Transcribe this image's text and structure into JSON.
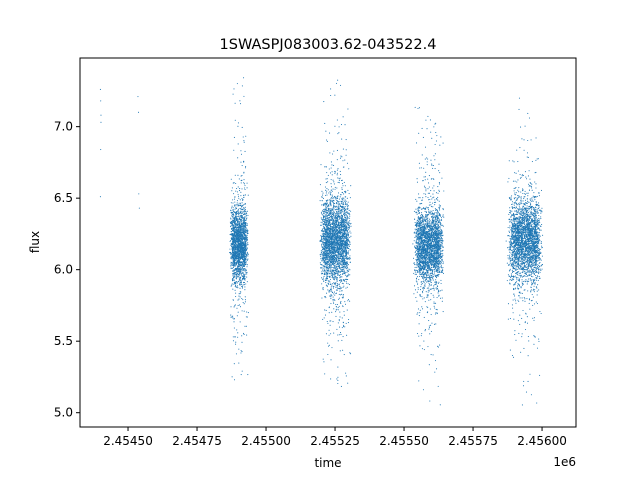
{
  "chart_data": {
    "type": "scatter",
    "title": "1SWASPJ083003.62-043522.4",
    "xlabel": "time",
    "ylabel": "flux",
    "x_offset_label": "1e6",
    "xlim": [
      2454326,
      2456123
    ],
    "ylim": [
      4.9,
      7.48
    ],
    "x_ticks": [
      {
        "value": 2454500,
        "label": "2.45450"
      },
      {
        "value": 2454750,
        "label": "2.45475"
      },
      {
        "value": 2455000,
        "label": "2.45500"
      },
      {
        "value": 2455250,
        "label": "2.45525"
      },
      {
        "value": 2455500,
        "label": "2.45550"
      },
      {
        "value": 2455750,
        "label": "2.45575"
      },
      {
        "value": 2456000,
        "label": "2.45600"
      }
    ],
    "y_ticks": [
      {
        "value": 5.0,
        "label": "5.0"
      },
      {
        "value": 5.5,
        "label": "5.5"
      },
      {
        "value": 6.0,
        "label": "6.0"
      },
      {
        "value": 6.5,
        "label": "6.5"
      },
      {
        "value": 7.0,
        "label": "7.0"
      }
    ],
    "grid": false,
    "marker_color": "#1f77b4",
    "series": [
      {
        "points": [
          [
            2454400,
            7.26
          ],
          [
            2454401,
            7.18
          ],
          [
            2454402,
            7.08
          ],
          [
            2454402,
            7.03
          ],
          [
            2454401,
            6.84
          ],
          [
            2454400,
            6.51
          ],
          [
            2454536,
            7.21
          ],
          [
            2454538,
            7.1
          ],
          [
            2454539,
            6.53
          ],
          [
            2454541,
            6.43
          ],
          [
            2454868,
            6.12
          ],
          [
            2454875,
            6.25
          ],
          [
            2454880,
            6.05
          ],
          [
            2454886,
            6.4
          ],
          [
            2454890,
            5.9
          ],
          [
            2454897,
            6.2
          ],
          [
            2454903,
            6.3
          ],
          [
            2454910,
            6.0
          ],
          [
            2454916,
            6.15
          ],
          [
            2454922,
            6.6
          ],
          [
            2454930,
            6.1
          ],
          [
            2454936,
            5.7
          ],
          [
            2455195,
            6.2
          ],
          [
            2455205,
            6.35
          ],
          [
            2455215,
            6.05
          ],
          [
            2455225,
            6.25
          ],
          [
            2455235,
            5.85
          ],
          [
            2455245,
            6.45
          ],
          [
            2455255,
            6.1
          ],
          [
            2455265,
            6.3
          ],
          [
            2455275,
            6.0
          ],
          [
            2455285,
            5.6
          ],
          [
            2455290,
            6.8
          ],
          [
            2455300,
            6.2
          ],
          [
            2455532,
            6.18
          ],
          [
            2455545,
            6.3
          ],
          [
            2455558,
            6.05
          ],
          [
            2455570,
            6.28
          ],
          [
            2455582,
            5.95
          ],
          [
            2455595,
            6.4
          ],
          [
            2455608,
            6.12
          ],
          [
            2455620,
            6.22
          ],
          [
            2455632,
            5.8
          ],
          [
            2455644,
            6.55
          ],
          [
            2455870,
            6.2
          ],
          [
            2455882,
            6.35
          ],
          [
            2455894,
            6.02
          ],
          [
            2455906,
            6.26
          ],
          [
            2455918,
            5.92
          ],
          [
            2455930,
            6.42
          ],
          [
            2455942,
            6.15
          ],
          [
            2455954,
            6.3
          ],
          [
            2455966,
            5.75
          ],
          [
            2455978,
            6.6
          ],
          [
            2455990,
            6.1
          ],
          [
            2456002,
            6.24
          ]
        ]
      }
    ],
    "clusters": [
      {
        "center": 2454902,
        "half_width": 34,
        "count": 2100,
        "y_mean": 6.18,
        "y_sd": 0.13,
        "outlier_sd": 0.45,
        "y_min": 5.05,
        "y_max": 7.35
      },
      {
        "center": 2455252,
        "half_width": 58,
        "count": 2900,
        "y_mean": 6.2,
        "y_sd": 0.15,
        "outlier_sd": 0.5,
        "y_min": 5.05,
        "y_max": 7.38
      },
      {
        "center": 2455590,
        "half_width": 56,
        "count": 2700,
        "y_mean": 6.17,
        "y_sd": 0.13,
        "outlier_sd": 0.45,
        "y_min": 5.05,
        "y_max": 7.25
      },
      {
        "center": 2455938,
        "half_width": 65,
        "count": 2800,
        "y_mean": 6.2,
        "y_sd": 0.14,
        "outlier_sd": 0.45,
        "y_min": 5.05,
        "y_max": 7.3
      }
    ]
  }
}
